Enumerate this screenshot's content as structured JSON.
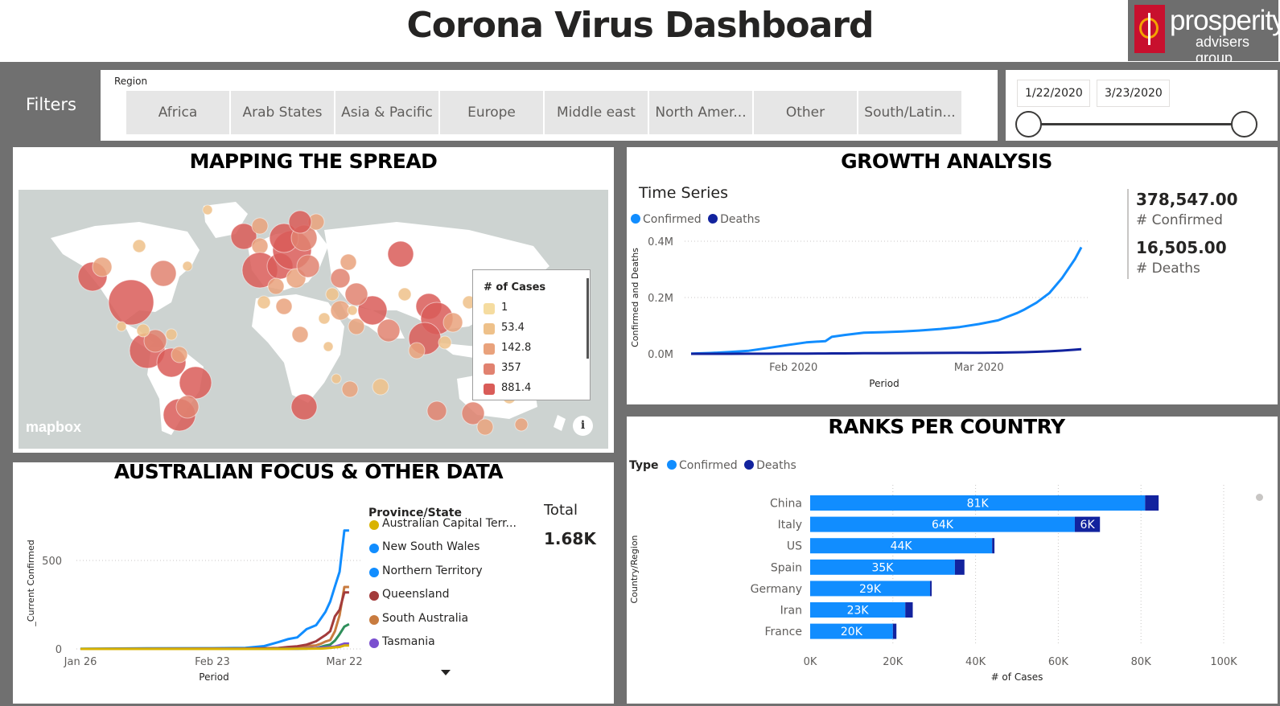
{
  "header": {
    "title": "Corona Virus Dashboard"
  },
  "logo": {
    "word": "prosperity",
    "sub": "advisers group"
  },
  "filters": {
    "label": "Filters",
    "region_title": "Region",
    "regions": [
      "Africa",
      "Arab States",
      "Asia & Pacific",
      "Europe",
      "Middle east",
      "North Amer...",
      "Other",
      "South/Latin..."
    ],
    "date_start": "1/22/2020",
    "date_end": "3/23/2020"
  },
  "colors": {
    "confirmed": "#118DFF",
    "deaths": "#12239E",
    "map_bubble": "#D9524C",
    "map_bubble_light": "#F2D49B",
    "frame": "#707070"
  },
  "map": {
    "title": "MAPPING THE SPREAD",
    "legend_title": "# of Cases",
    "legend": [
      {
        "label": "1",
        "color": "#F5DCA0"
      },
      {
        "label": "53.4",
        "color": "#EEC18A"
      },
      {
        "label": "142.8",
        "color": "#E9A27C"
      },
      {
        "label": "357",
        "color": "#E18270"
      },
      {
        "label": "881.4",
        "color": "#D95C58"
      }
    ],
    "attribution": "mapbox",
    "info_icon": "info-icon"
  },
  "growth": {
    "title": "GROWTH ANALYSIS",
    "chart_title": "Time Series",
    "legend": [
      "Confirmed",
      "Deaths"
    ],
    "ylabel": "Confirmed and Deaths",
    "xlabel": "Period",
    "yticks": [
      "0.4M",
      "0.2M",
      "0.0M"
    ],
    "xticks": [
      "Feb 2020",
      "Mar 2020"
    ],
    "kpi": [
      {
        "value": "378,547.00",
        "label": "# Confirmed"
      },
      {
        "value": "16,505.00",
        "label": "# Deaths"
      }
    ]
  },
  "australia": {
    "title": "AUSTRALIAN FOCUS & OTHER DATA",
    "ylabel": "_Current Confirmed",
    "xlabel": "Period",
    "yticks": [
      "500",
      "0"
    ],
    "xticks": [
      "Jan 26",
      "Feb 23",
      "Mar 22"
    ],
    "legend_title": "Province/State",
    "states": [
      {
        "name": "Australian Capital Terr...",
        "color": "#D9B300"
      },
      {
        "name": "New South Wales",
        "color": "#118DFF"
      },
      {
        "name": "Northern Territory",
        "color": "#118DFF"
      },
      {
        "name": "Queensland",
        "color": "#A33B3B"
      },
      {
        "name": "South Australia",
        "color": "#C87B3F"
      },
      {
        "name": "Tasmania",
        "color": "#7A4FCF"
      }
    ],
    "total_label": "Total",
    "total_value": "1.68K"
  },
  "ranks": {
    "title": "RANKS PER COUNTRY",
    "legend_label": "Type",
    "legend": [
      "Confirmed",
      "Deaths"
    ],
    "ylabel": "Country/Region",
    "xlabel": "# of Cases",
    "xticks": [
      "0K",
      "20K",
      "40K",
      "60K",
      "80K",
      "100K"
    ]
  },
  "chart_data": [
    {
      "type": "line",
      "title": "Time Series",
      "xlabel": "Period",
      "ylabel": "Confirmed and Deaths",
      "x": [
        "2020-01-22",
        "2020-01-25",
        "2020-01-28",
        "2020-01-31",
        "2020-02-03",
        "2020-02-06",
        "2020-02-09",
        "2020-02-12",
        "2020-02-13",
        "2020-02-15",
        "2020-02-18",
        "2020-02-21",
        "2020-02-24",
        "2020-02-27",
        "2020-03-01",
        "2020-03-04",
        "2020-03-07",
        "2020-03-10",
        "2020-03-13",
        "2020-03-14",
        "2020-03-16",
        "2020-03-18",
        "2020-03-20",
        "2020-03-22",
        "2020-03-23"
      ],
      "series": [
        {
          "name": "Confirmed",
          "values": [
            600,
            2900,
            6200,
            11000,
            20500,
            31000,
            40500,
            45200,
            60400,
            67000,
            75100,
            76800,
            79500,
            83100,
            88400,
            95100,
            105800,
            118900,
            145200,
            156100,
            181600,
            215400,
            269100,
            336000,
            378547
          ]
        },
        {
          "name": "Deaths",
          "values": [
            17,
            56,
            132,
            259,
            427,
            637,
            906,
            1118,
            1370,
            1527,
            2004,
            2251,
            2629,
            2804,
            3079,
            3352,
            3568,
            4262,
            5416,
            5819,
            7126,
            8730,
            11344,
            14648,
            16505
          ]
        }
      ],
      "ylim": [
        0,
        400000
      ],
      "yticks": [
        0,
        200000,
        400000
      ]
    },
    {
      "type": "line",
      "xlabel": "Period",
      "ylabel": "_Current Confirmed",
      "x": [
        "2020-01-26",
        "2020-02-09",
        "2020-02-23",
        "2020-03-01",
        "2020-03-05",
        "2020-03-08",
        "2020-03-10",
        "2020-03-12",
        "2020-03-14",
        "2020-03-16",
        "2020-03-17",
        "2020-03-18",
        "2020-03-19",
        "2020-03-20",
        "2020-03-21",
        "2020-03-22",
        "2020-03-23"
      ],
      "series": [
        {
          "name": "New South Wales",
          "values": [
            1,
            3,
            4,
            6,
            16,
            38,
            55,
            65,
            112,
            134,
            171,
            210,
            267,
            353,
            436,
            669,
            669
          ]
        },
        {
          "name": "South Australia",
          "values": [
            0,
            0,
            0,
            0,
            1,
            3,
            4,
            7,
            16,
            20,
            29,
            42,
            50,
            100,
            190,
            350,
            350
          ]
        },
        {
          "name": "Queensland",
          "values": [
            0,
            1,
            2,
            2,
            3,
            5,
            11,
            15,
            24,
            43,
            61,
            78,
            100,
            184,
            221,
            319,
            319
          ]
        },
        {
          "name": "Northern Territory",
          "values": [
            0,
            0,
            0,
            0,
            0,
            1,
            1,
            1,
            2,
            5,
            12,
            19,
            24,
            47,
            83,
            126,
            140
          ]
        },
        {
          "name": "Tasmania",
          "values": [
            0,
            0,
            0,
            0,
            0,
            0,
            1,
            1,
            3,
            5,
            7,
            9,
            11,
            13,
            21,
            30,
            30
          ]
        },
        {
          "name": "Australian Capital Terr...",
          "values": [
            0,
            0,
            0,
            0,
            0,
            0,
            0,
            1,
            1,
            2,
            2,
            3,
            6,
            9,
            11,
            19,
            19
          ]
        }
      ],
      "ylim": [
        0,
        700
      ],
      "yticks": [
        0,
        500
      ]
    },
    {
      "type": "bar",
      "orientation": "horizontal",
      "stacked": true,
      "xlabel": "# of Cases",
      "ylabel": "Country/Region",
      "categories": [
        "China",
        "Italy",
        "US",
        "Spain",
        "Germany",
        "Iran",
        "France"
      ],
      "series": [
        {
          "name": "Confirmed",
          "values": [
            81000,
            64000,
            44000,
            35000,
            29000,
            23000,
            20000
          ],
          "labels": [
            "81K",
            "64K",
            "44K",
            "35K",
            "29K",
            "23K",
            "20K"
          ]
        },
        {
          "name": "Deaths",
          "values": [
            3270,
            6080,
            570,
            2310,
            126,
            1810,
            860
          ],
          "labels": [
            "",
            "6K",
            "",
            "",
            "",
            "",
            ""
          ]
        }
      ],
      "xlim": [
        0,
        100000
      ],
      "xticks": [
        0,
        20000,
        40000,
        60000,
        80000,
        100000
      ]
    }
  ]
}
